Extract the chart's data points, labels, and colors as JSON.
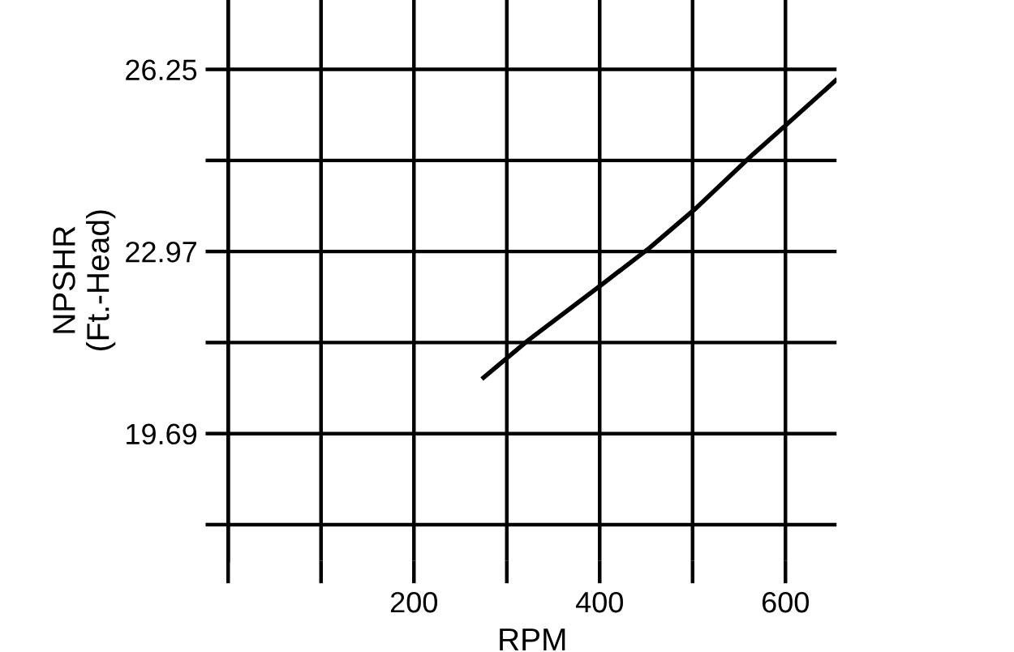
{
  "chart_data": {
    "type": "line",
    "xlabel": "RPM",
    "ylabel": "NPSHR\n(Ft.-Head)",
    "x": [
      275,
      323,
      405,
      454,
      503,
      565,
      600,
      654
    ],
    "series": [
      {
        "color": "#000000",
        "values": [
          20.7,
          21.37,
          22.41,
          23.04,
          23.74,
          24.72,
          25.24,
          26.05
        ]
      }
    ],
    "xlim": [
      0,
      655
    ],
    "ylim": [
      17.4,
      27.5
    ],
    "xticks": [
      {
        "value": 0,
        "label": null
      },
      {
        "value": 100,
        "label": null
      },
      200,
      {
        "value": 300,
        "label": null
      },
      400,
      {
        "value": 500,
        "label": null
      },
      600
    ],
    "yticks": [
      {
        "value": 18.05,
        "label": null
      },
      19.69,
      {
        "value": 21.33,
        "label": null
      },
      22.97,
      {
        "value": 24.61,
        "label": null
      },
      26.25
    ],
    "grid": true,
    "marker": "none",
    "line_style": "solid"
  }
}
